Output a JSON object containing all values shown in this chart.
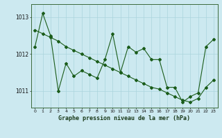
{
  "title": "Graphe pression niveau de la mer (hPa)",
  "ylabel_ticks": [
    1011,
    1012,
    1013
  ],
  "xlim": [
    -0.5,
    23.5
  ],
  "ylim": [
    1010.55,
    1013.35
  ],
  "background_color": "#cce9f0",
  "grid_color": "#aad4dc",
  "line_color": "#1a5c1a",
  "s1": [
    1012.2,
    1013.1,
    1012.5,
    1011.0,
    1011.75,
    1011.4,
    1011.55,
    1011.45,
    1011.35,
    1011.85,
    1012.55,
    1011.5,
    1012.2,
    1012.05,
    1012.15,
    1011.85,
    1011.85,
    1011.1,
    1011.1,
    1010.7,
    1010.85,
    1010.95,
    1012.2,
    1012.4
  ],
  "s2": [
    1012.65,
    1012.55,
    1012.45,
    1012.35,
    1012.2,
    1012.1,
    1012.0,
    1011.9,
    1011.8,
    1011.7,
    1011.6,
    1011.5,
    1011.4,
    1011.3,
    1011.2,
    1011.1,
    1011.05,
    1010.95,
    1010.85,
    1010.75,
    1010.7,
    1010.8,
    1011.1,
    1011.3
  ],
  "figsize": [
    3.2,
    2.0
  ],
  "dpi": 100
}
